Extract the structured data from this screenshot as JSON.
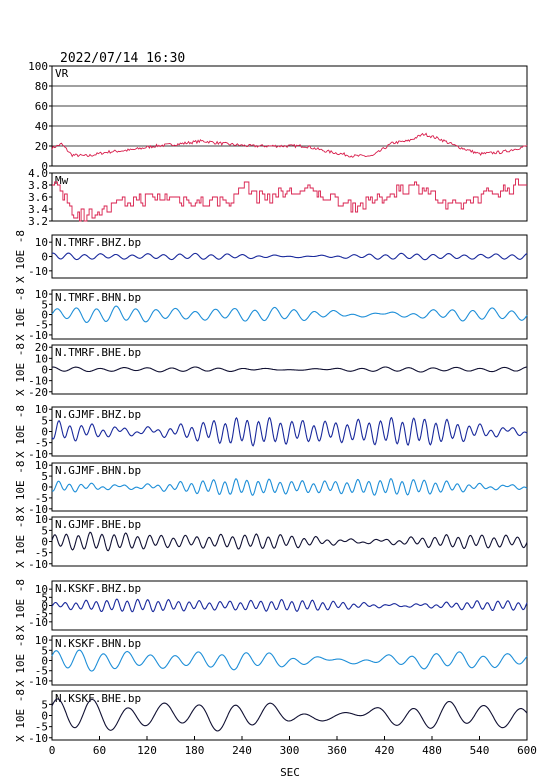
{
  "header": {
    "timestamp": "2022/07/14  16:30"
  },
  "colors": {
    "vr": "#d81e4c",
    "mw": "#d81e4c",
    "bhz": "#1a2a9c",
    "bhn": "#1f8fd8",
    "bhe": "#111133",
    "axis": "#000000"
  },
  "chart_data": {
    "type": "line",
    "xlabel": "SEC",
    "xlim": [
      0,
      600
    ],
    "xticks": [
      "0",
      "60",
      "120",
      "180",
      "240",
      "300",
      "360",
      "420",
      "480",
      "540",
      "600"
    ],
    "panels": [
      {
        "id": "vr",
        "label": "VR",
        "kind": "vr",
        "ylim": [
          0,
          100
        ],
        "yticks": [
          "0",
          "20",
          "40",
          "60",
          "80",
          "100"
        ],
        "ylabel": "",
        "grid": true,
        "keyframes": [
          [
            0,
            18
          ],
          [
            12,
            22
          ],
          [
            25,
            11
          ],
          [
            45,
            10
          ],
          [
            70,
            14
          ],
          [
            100,
            16
          ],
          [
            130,
            20
          ],
          [
            160,
            22
          ],
          [
            190,
            25
          ],
          [
            220,
            22
          ],
          [
            250,
            20
          ],
          [
            290,
            20
          ],
          [
            320,
            20
          ],
          [
            345,
            15
          ],
          [
            380,
            10
          ],
          [
            405,
            10
          ],
          [
            430,
            23
          ],
          [
            450,
            25
          ],
          [
            470,
            32
          ],
          [
            490,
            27
          ],
          [
            510,
            20
          ],
          [
            540,
            12
          ],
          [
            570,
            14
          ],
          [
            600,
            20
          ]
        ]
      },
      {
        "id": "mw",
        "label": "Mw",
        "kind": "mw",
        "ylim": [
          3.2,
          4.0
        ],
        "yticks": [
          "3.2",
          "3.4",
          "3.6",
          "3.8",
          "4.0"
        ],
        "ylabel": "",
        "grid": false,
        "keyframes": [
          [
            0,
            3.8
          ],
          [
            15,
            3.6
          ],
          [
            30,
            3.3
          ],
          [
            60,
            3.35
          ],
          [
            100,
            3.55
          ],
          [
            140,
            3.6
          ],
          [
            190,
            3.5
          ],
          [
            230,
            3.55
          ],
          [
            240,
            3.85
          ],
          [
            260,
            3.6
          ],
          [
            290,
            3.65
          ],
          [
            320,
            3.7
          ],
          [
            350,
            3.6
          ],
          [
            380,
            3.45
          ],
          [
            410,
            3.55
          ],
          [
            440,
            3.75
          ],
          [
            470,
            3.75
          ],
          [
            500,
            3.4
          ],
          [
            540,
            3.6
          ],
          [
            580,
            3.75
          ],
          [
            600,
            3.85
          ]
        ]
      },
      {
        "id": "tmrf-bhz",
        "label": "N.TMRF.BHZ.bp",
        "kind": "bhz",
        "ylim": [
          -15,
          15
        ],
        "yticks": [
          "0",
          "10",
          "-10"
        ],
        "ylabel": "X 10E -8",
        "grid": false,
        "amplitude": 2,
        "period": 20
      },
      {
        "id": "tmrf-bhn",
        "label": "N.TMRF.BHN.bp",
        "kind": "bhn",
        "ylim": [
          -12,
          12
        ],
        "yticks": [
          "10",
          "5",
          "0",
          "-5",
          "-10"
        ],
        "ylabel": "X 10E -8",
        "grid": false,
        "amplitude": 3,
        "period": 25
      },
      {
        "id": "tmrf-bhe",
        "label": "N.TMRF.BHE.bp",
        "kind": "bhe",
        "ylim": [
          -22,
          22
        ],
        "yticks": [
          "20",
          "10",
          "0",
          "-10",
          "-20"
        ],
        "ylabel": "X 10E -8",
        "grid": false,
        "amplitude": 2,
        "period": 30
      },
      {
        "id": "gjmf-bhz",
        "label": "N.GJMF.BHZ.bp",
        "kind": "bhz",
        "ylim": [
          -11,
          11
        ],
        "yticks": [
          "10",
          "5",
          "0",
          "-5",
          "-10"
        ],
        "ylabel": "X 10E -8",
        "grid": false,
        "amplitude": 5,
        "period": 14
      },
      {
        "id": "gjmf-bhn",
        "label": "N.GJMF.BHN.bp",
        "kind": "bhn",
        "ylim": [
          -11,
          11
        ],
        "yticks": [
          "10",
          "5",
          "0",
          "-5",
          "-10"
        ],
        "ylabel": "X 10E -8",
        "grid": false,
        "amplitude": 3,
        "period": 14
      },
      {
        "id": "gjmf-bhe",
        "label": "N.GJMF.BHE.bp",
        "kind": "bhe",
        "ylim": [
          -11,
          11
        ],
        "yticks": [
          "10",
          "5",
          "0",
          "-5",
          "-10"
        ],
        "ylabel": "X 10E -8",
        "grid": false,
        "amplitude": 3,
        "period": 15
      },
      {
        "id": "kskf-bhz",
        "label": "N.KSKF.BHZ.bp",
        "kind": "bhz",
        "ylim": [
          -15,
          15
        ],
        "yticks": [
          "10",
          "5",
          "0",
          "-5",
          "-10"
        ],
        "ylabel": "X 10E -8",
        "grid": false,
        "amplitude": 3,
        "period": 13
      },
      {
        "id": "kskf-bhn",
        "label": "N.KSKF.BHN.bp",
        "kind": "bhn",
        "ylim": [
          -12,
          12
        ],
        "yticks": [
          "10",
          "5",
          "0",
          "-5",
          "-10"
        ],
        "ylabel": "X 10E -8",
        "grid": false,
        "amplitude": 4,
        "period": 30
      },
      {
        "id": "kskf-bhe",
        "label": "N.KSKF.BHE.bp",
        "kind": "bhe",
        "ylim": [
          -11,
          11
        ],
        "yticks": [
          "5",
          "0",
          "-5",
          "-10"
        ],
        "ylabel": "X 10E -8",
        "grid": false,
        "amplitude": 6,
        "period": 45
      }
    ]
  }
}
